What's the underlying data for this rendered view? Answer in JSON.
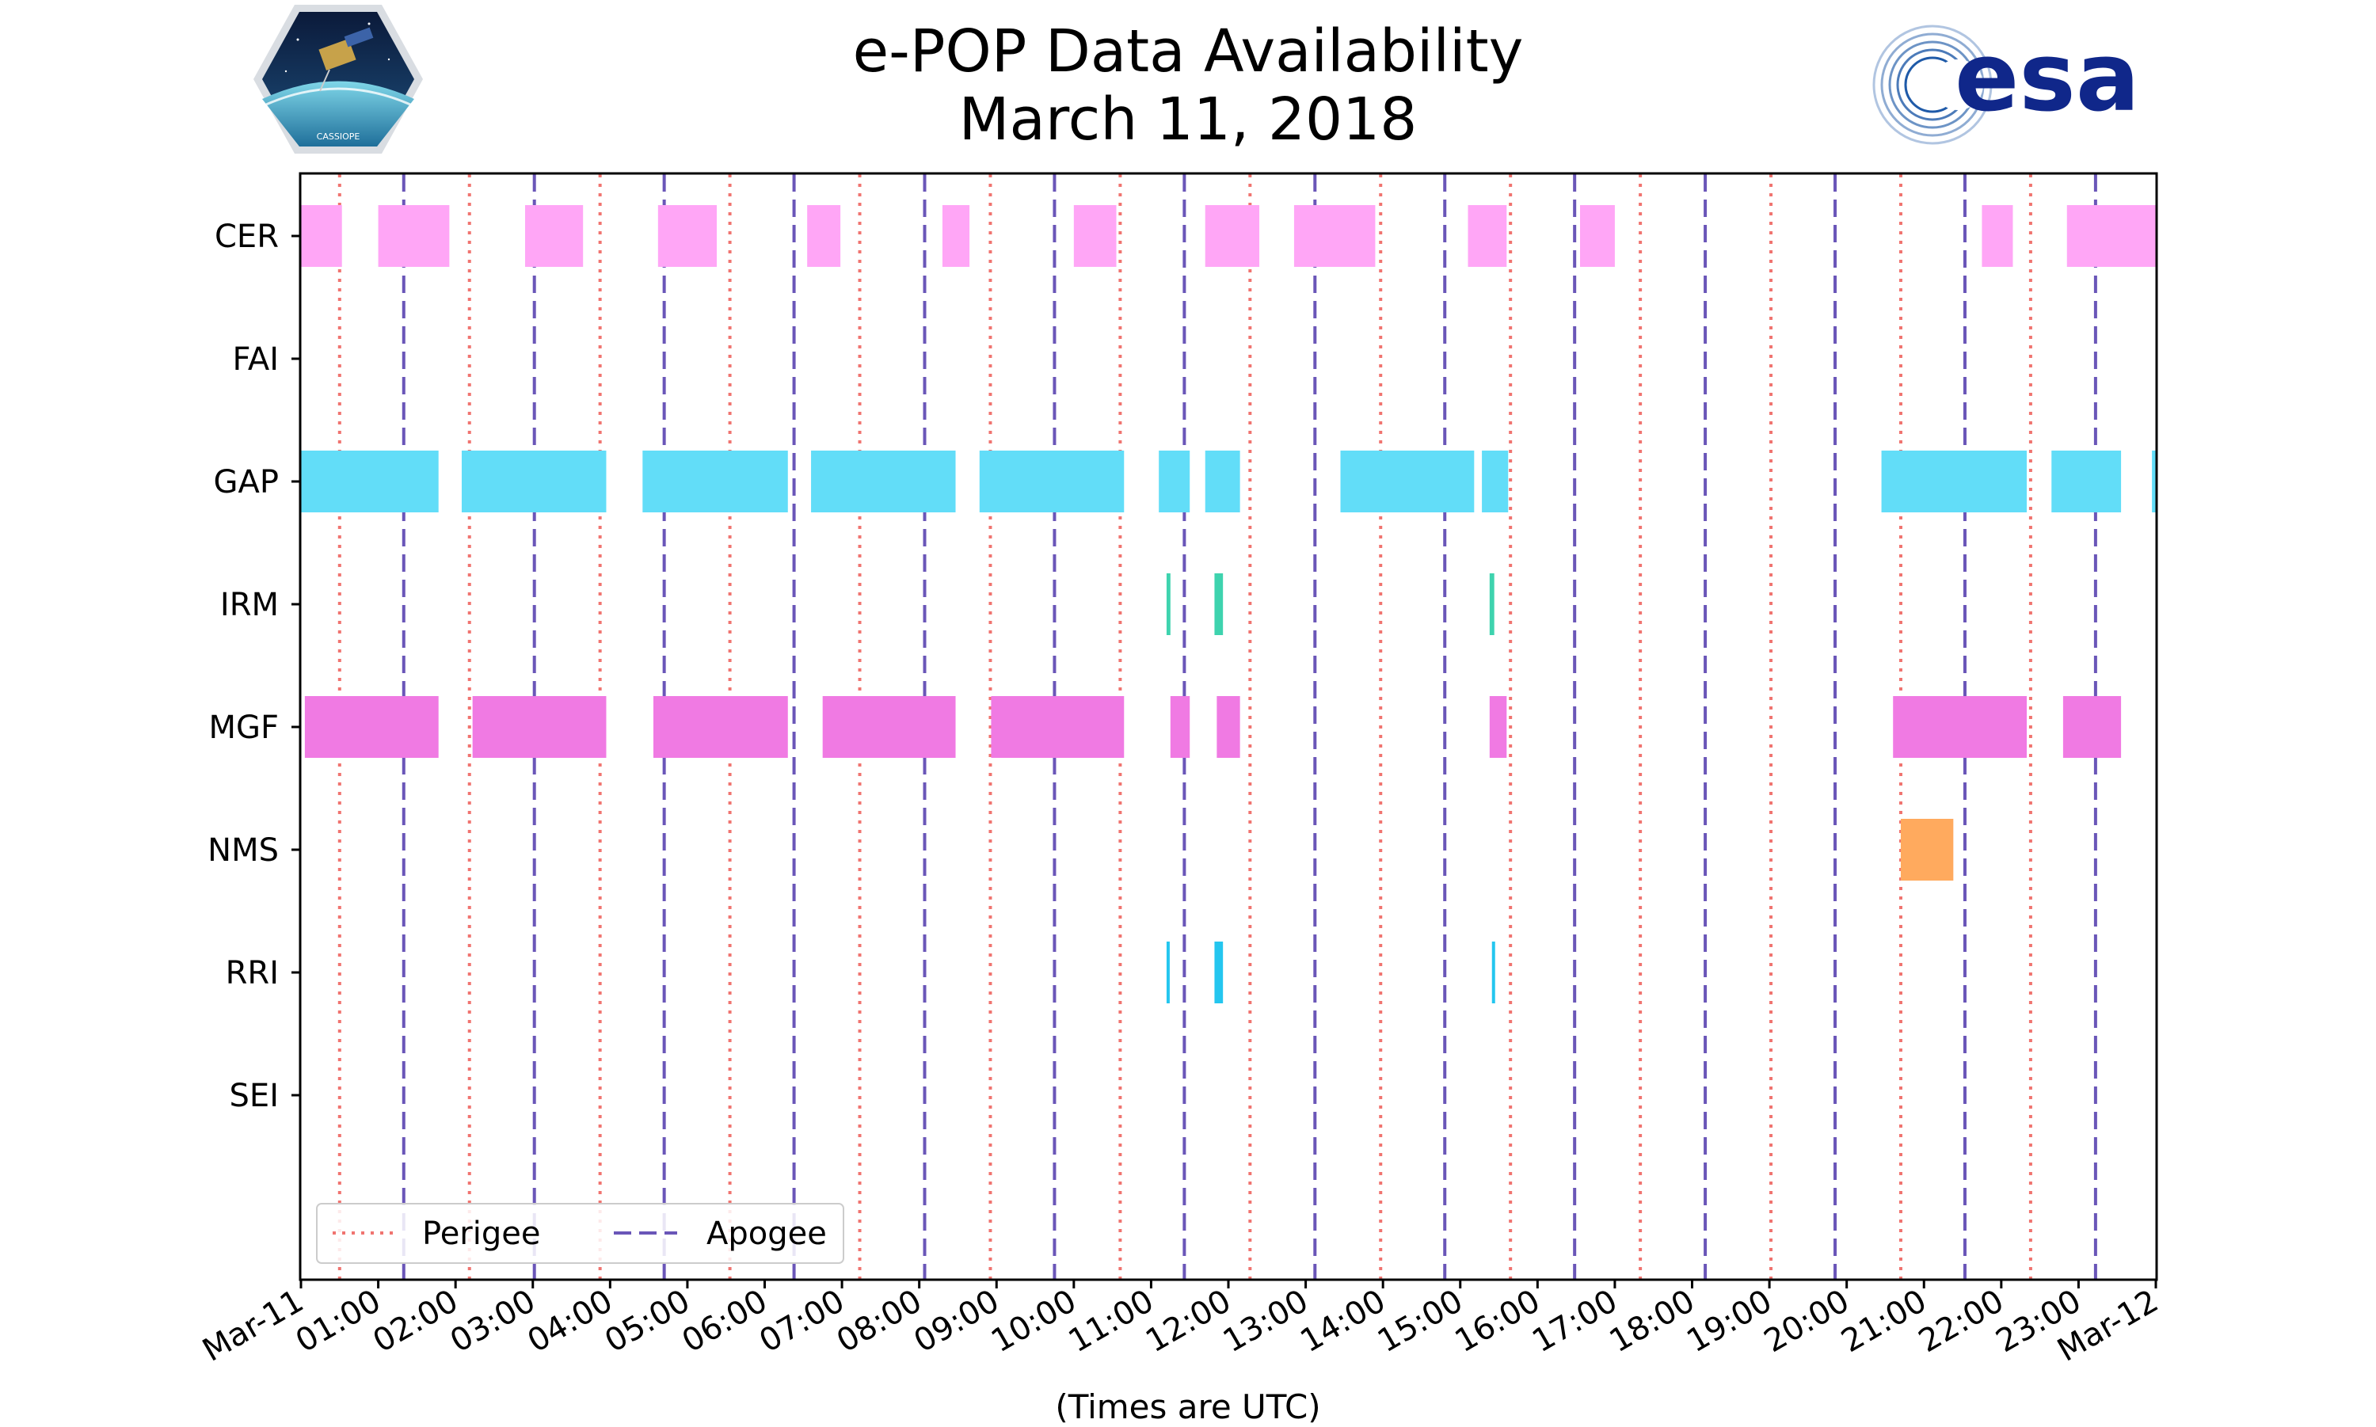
{
  "header": {
    "title_line1": "e-POP Data Availability",
    "title_line2": "March 11, 2018"
  },
  "logos": {
    "left_logo_text": "CASSIOPE",
    "right_logo_text": "esa"
  },
  "chart_data": {
    "type": "timeline",
    "title": "e-POP Data Availability March 11, 2018",
    "xlabel": "(Times are UTC)",
    "ylabel": "",
    "x_unit": "hours UTC",
    "xlim": [
      0,
      24
    ],
    "categories": [
      "CER",
      "FAI",
      "GAP",
      "IRM",
      "MGF",
      "NMS",
      "RRI",
      "SEI"
    ],
    "x_tick_labels": [
      "Mar-11",
      "01:00",
      "02:00",
      "03:00",
      "04:00",
      "05:00",
      "06:00",
      "07:00",
      "08:00",
      "09:00",
      "10:00",
      "11:00",
      "12:00",
      "13:00",
      "14:00",
      "15:00",
      "16:00",
      "17:00",
      "18:00",
      "19:00",
      "20:00",
      "21:00",
      "22:00",
      "23:00",
      "Mar-12"
    ],
    "series": [
      {
        "name": "CER",
        "color": "#FFA6F6",
        "intervals": [
          [
            0.0,
            0.53
          ],
          [
            1.0,
            1.92
          ],
          [
            2.9,
            3.65
          ],
          [
            4.62,
            5.38
          ],
          [
            6.55,
            6.98
          ],
          [
            8.3,
            8.65
          ],
          [
            10.0,
            10.55
          ],
          [
            11.7,
            12.4
          ],
          [
            12.85,
            13.9
          ],
          [
            15.1,
            15.6
          ],
          [
            16.55,
            17.0
          ],
          [
            21.75,
            22.15
          ],
          [
            22.85,
            24.0
          ]
        ]
      },
      {
        "name": "FAI",
        "color": "#9BCB6C",
        "intervals": []
      },
      {
        "name": "GAP",
        "color": "#62DDF8",
        "intervals": [
          [
            0.0,
            1.78
          ],
          [
            2.08,
            3.95
          ],
          [
            4.42,
            6.3
          ],
          [
            6.6,
            8.47
          ],
          [
            8.78,
            10.65
          ],
          [
            11.1,
            11.5
          ],
          [
            11.7,
            12.15
          ],
          [
            13.45,
            15.18
          ],
          [
            15.28,
            15.62
          ],
          [
            20.45,
            22.33
          ],
          [
            22.65,
            23.55
          ],
          [
            23.95,
            24.0
          ]
        ]
      },
      {
        "name": "IRM",
        "color": "#3ED3AE",
        "intervals": [
          [
            11.2,
            11.25
          ],
          [
            11.82,
            11.93
          ],
          [
            15.38,
            15.44
          ]
        ]
      },
      {
        "name": "MGF",
        "color": "#F07AE3",
        "intervals": [
          [
            0.05,
            1.78
          ],
          [
            2.22,
            3.95
          ],
          [
            4.56,
            6.3
          ],
          [
            6.75,
            8.47
          ],
          [
            8.93,
            10.65
          ],
          [
            11.25,
            11.5
          ],
          [
            11.85,
            12.15
          ],
          [
            15.38,
            15.6
          ],
          [
            20.6,
            22.33
          ],
          [
            22.8,
            23.55
          ]
        ]
      },
      {
        "name": "NMS",
        "color": "#FFAA5E",
        "intervals": [
          [
            20.7,
            21.38
          ]
        ]
      },
      {
        "name": "RRI",
        "color": "#24C6EF",
        "intervals": [
          [
            11.2,
            11.24
          ],
          [
            11.82,
            11.93
          ],
          [
            15.41,
            15.44
          ]
        ]
      },
      {
        "name": "SEI",
        "color": "#B0B0B0",
        "intervals": []
      }
    ],
    "perigee_times": [
      0.5,
      2.18,
      3.87,
      5.55,
      7.23,
      8.92,
      10.6,
      12.28,
      13.97,
      15.65,
      17.33,
      19.02,
      20.7,
      22.38
    ],
    "apogee_times": [
      1.33,
      3.02,
      4.7,
      6.38,
      8.07,
      9.75,
      11.43,
      13.12,
      14.8,
      16.48,
      18.17,
      19.85,
      21.53,
      23.22
    ],
    "legend": {
      "position": "bottom-left",
      "entries": [
        {
          "label": "Perigee",
          "color": "#F07470",
          "style": "dotted"
        },
        {
          "label": "Apogee",
          "color": "#6A56B8",
          "style": "dashed"
        }
      ]
    }
  }
}
